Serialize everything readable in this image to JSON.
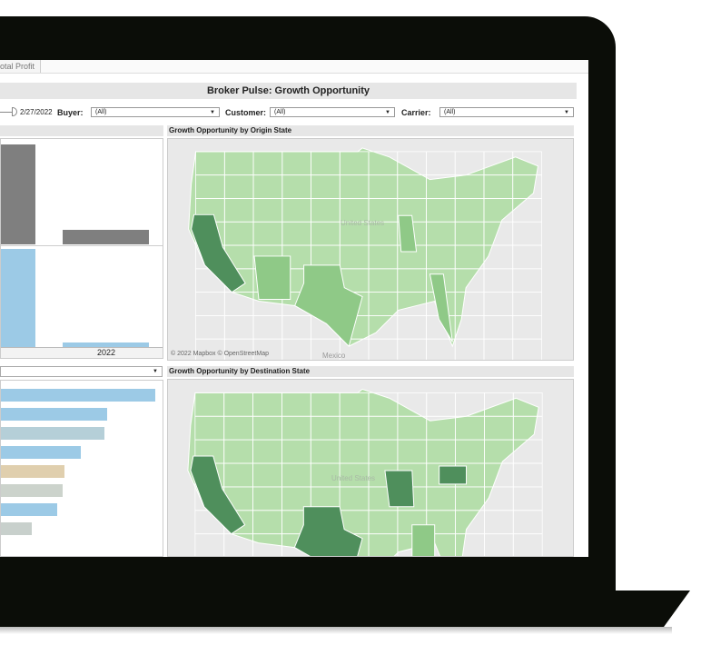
{
  "tabs": [
    {
      "label": "otal Profit"
    }
  ],
  "dashboard_title": "Broker Pulse: Growth Opportunity",
  "filters": {
    "date_end": "2/27/2022",
    "buyer": {
      "label": "Buyer:",
      "value": "(All)"
    },
    "customer": {
      "label": "Customer:",
      "value": "(All)"
    },
    "carrier": {
      "label": "Carrier:",
      "value": "(All)"
    }
  },
  "left_top_chart": {
    "type": "bar",
    "x_tick": "2022",
    "colors": {
      "top": "#7f7f7f",
      "bottom": "#9ccae6"
    }
  },
  "left_bottom_chart": {
    "type": "bar",
    "bar_colors": [
      "#9ccae6",
      "#9ccae6",
      "#b5cfd8",
      "#9ccae6",
      "#e0cfae",
      "#ccd3cc",
      "#9ccae6",
      "#c8d0cc"
    ]
  },
  "origin_map": {
    "title": "Growth Opportunity by Origin State",
    "attribution": "© 2022 Mapbox  © OpenStreetMap",
    "labels": [
      "Mexico",
      "United States"
    ]
  },
  "destination_map": {
    "title": "Growth Opportunity by Destination State",
    "labels": [
      "United States"
    ]
  },
  "colors": {
    "green_light": "#b5deab",
    "green_mid": "#8fc987",
    "green_dark": "#4f8f5c",
    "bezel": "#0b0d08"
  }
}
